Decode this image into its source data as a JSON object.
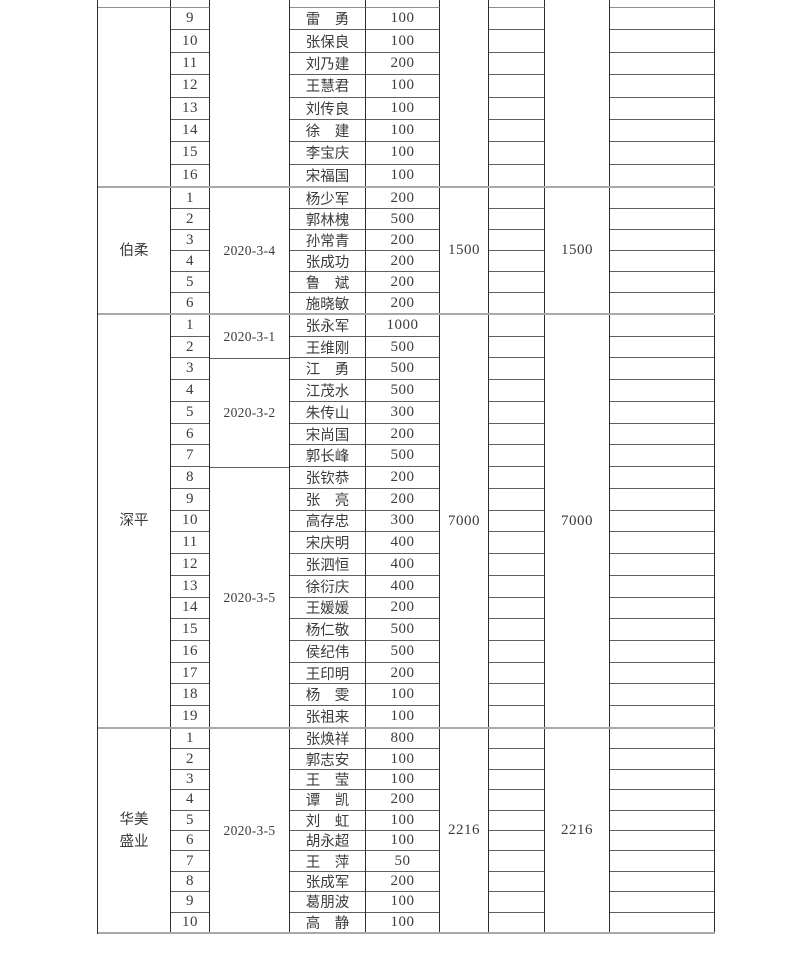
{
  "colors": {
    "background": "#ffffff",
    "text": "#3c3c3c",
    "grid_vertical": "#2d2d2d",
    "grid_row_line": "#606060",
    "grid_section_line": "#a9a9a9"
  },
  "table": {
    "sections": [
      {
        "group_lines": [],
        "date_groups": [
          {
            "label": "",
            "span": 8
          }
        ],
        "subtotal": "",
        "subtotal_2": "",
        "rows": [
          {
            "index": "9",
            "name": "雷　勇",
            "amount": "100"
          },
          {
            "index": "10",
            "name": "张保良",
            "amount": "100"
          },
          {
            "index": "11",
            "name": "刘乃建",
            "amount": "200"
          },
          {
            "index": "12",
            "name": "王慧君",
            "amount": "100"
          },
          {
            "index": "13",
            "name": "刘传良",
            "amount": "100"
          },
          {
            "index": "14",
            "name": "徐　建",
            "amount": "100"
          },
          {
            "index": "15",
            "name": "李宝庆",
            "amount": "100"
          },
          {
            "index": "16",
            "name": "宋福国",
            "amount": "100"
          }
        ]
      },
      {
        "group_lines": [
          "伯柔"
        ],
        "date_groups": [
          {
            "label": "2020-3-4",
            "span": 6
          }
        ],
        "subtotal": "1500",
        "subtotal_2": "1500",
        "rows": [
          {
            "index": "1",
            "name": "杨少军",
            "amount": "200"
          },
          {
            "index": "2",
            "name": "郭林槐",
            "amount": "500"
          },
          {
            "index": "3",
            "name": "孙常青",
            "amount": "200"
          },
          {
            "index": "4",
            "name": "张成功",
            "amount": "200"
          },
          {
            "index": "5",
            "name": "鲁　斌",
            "amount": "200"
          },
          {
            "index": "6",
            "name": "施晓敏",
            "amount": "200"
          }
        ]
      },
      {
        "group_lines": [
          "深平"
        ],
        "date_groups": [
          {
            "label": "2020-3-1",
            "span": 2
          },
          {
            "label": "2020-3-2",
            "span": 5
          },
          {
            "label": "2020-3-5",
            "span": 12
          }
        ],
        "subtotal": "7000",
        "subtotal_2": "7000",
        "rows": [
          {
            "index": "1",
            "name": "张永军",
            "amount": "1000"
          },
          {
            "index": "2",
            "name": "王维刚",
            "amount": "500"
          },
          {
            "index": "3",
            "name": "江　勇",
            "amount": "500"
          },
          {
            "index": "4",
            "name": "江茂水",
            "amount": "500"
          },
          {
            "index": "5",
            "name": "朱传山",
            "amount": "300"
          },
          {
            "index": "6",
            "name": "宋尚国",
            "amount": "200"
          },
          {
            "index": "7",
            "name": "郭长峰",
            "amount": "500"
          },
          {
            "index": "8",
            "name": "张钦恭",
            "amount": "200"
          },
          {
            "index": "9",
            "name": "张　亮",
            "amount": "200"
          },
          {
            "index": "10",
            "name": "高存忠",
            "amount": "300"
          },
          {
            "index": "11",
            "name": "宋庆明",
            "amount": "400"
          },
          {
            "index": "12",
            "name": "张泗恒",
            "amount": "400"
          },
          {
            "index": "13",
            "name": "徐衍庆",
            "amount": "400"
          },
          {
            "index": "14",
            "name": "王媛媛",
            "amount": "200"
          },
          {
            "index": "15",
            "name": "杨仁敬",
            "amount": "500"
          },
          {
            "index": "16",
            "name": "侯纪伟",
            "amount": "500"
          },
          {
            "index": "17",
            "name": "王印明",
            "amount": "200"
          },
          {
            "index": "18",
            "name": "杨　雯",
            "amount": "100"
          },
          {
            "index": "19",
            "name": "张祖来",
            "amount": "100"
          }
        ]
      },
      {
        "group_lines": [
          "华美",
          "盛业"
        ],
        "date_groups": [
          {
            "label": "2020-3-5",
            "span": 10
          }
        ],
        "subtotal": "2216",
        "subtotal_2": "2216",
        "rows": [
          {
            "index": "1",
            "name": "张焕祥",
            "amount": "800"
          },
          {
            "index": "2",
            "name": "郭志安",
            "amount": "100"
          },
          {
            "index": "3",
            "name": "王　莹",
            "amount": "100"
          },
          {
            "index": "4",
            "name": "谭　凯",
            "amount": "200"
          },
          {
            "index": "5",
            "name": "刘　虹",
            "amount": "100"
          },
          {
            "index": "6",
            "name": "胡永超",
            "amount": "100"
          },
          {
            "index": "7",
            "name": "王　萍",
            "amount": "50"
          },
          {
            "index": "8",
            "name": "张成军",
            "amount": "200"
          },
          {
            "index": "9",
            "name": "葛朋波",
            "amount": "100"
          },
          {
            "index": "10",
            "name": "高　静",
            "amount": "100"
          }
        ]
      }
    ]
  }
}
